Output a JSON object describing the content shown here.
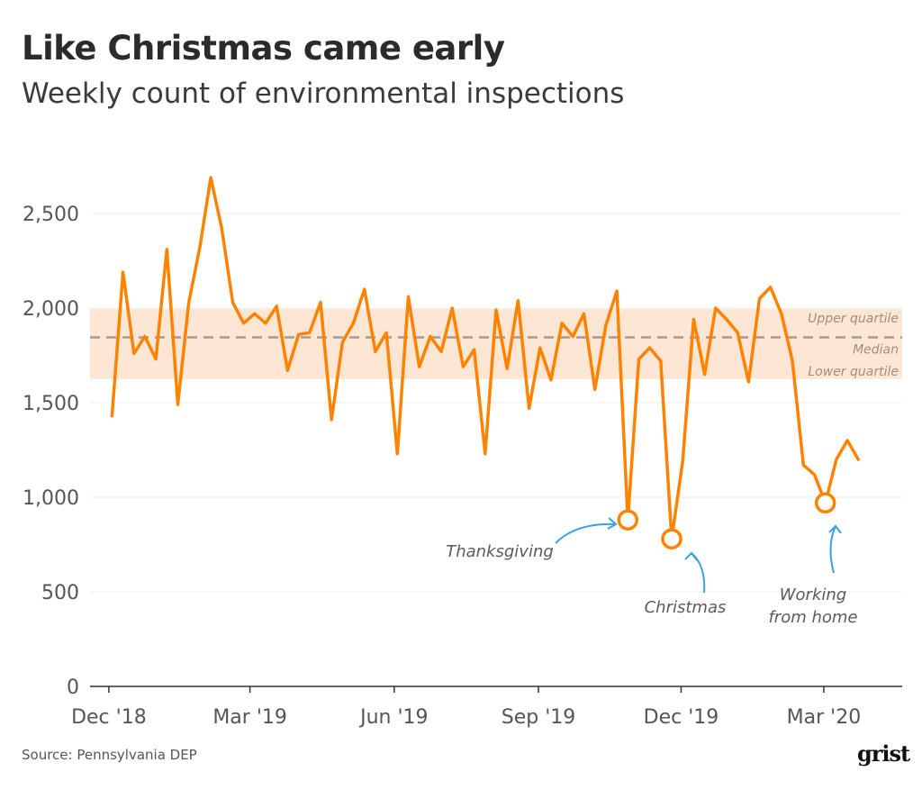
{
  "title": "Like Christmas came early",
  "subtitle": "Weekly count of environmental inspections",
  "source": "Source: Pennsylvania DEP",
  "logo": "grist",
  "colors": {
    "line": "#ff8300",
    "band": "#fde6d4",
    "median": "#a59a93",
    "annotation_arrow": "#3aa0e0"
  },
  "chart_data": {
    "type": "line",
    "title": "Like Christmas came early",
    "subtitle": "Weekly count of environmental inspections",
    "xlabel": "",
    "ylabel": "",
    "ylim": [
      0,
      2700
    ],
    "xlim": [
      "2018-11-19",
      "2020-04-20"
    ],
    "yticks": [
      0,
      500,
      1000,
      1500,
      2000,
      2500
    ],
    "ytick_labels": [
      "0",
      "500",
      "1,000",
      "1,500",
      "2,000",
      "2,500"
    ],
    "xticks": [
      "2018-12-01",
      "2019-03-01",
      "2019-06-01",
      "2019-09-01",
      "2019-12-01",
      "2020-03-01"
    ],
    "xtick_labels": [
      "Dec '18",
      "Mar '19",
      "Jun '19",
      "Sep '19",
      "Dec '19",
      "Mar '20"
    ],
    "grid": true,
    "x_start": "2018-12-03",
    "x_step_days": 7,
    "values": [
      1430,
      2190,
      1760,
      1850,
      1730,
      2310,
      1490,
      2030,
      2320,
      2690,
      2420,
      2030,
      1920,
      1970,
      1920,
      2010,
      1670,
      1860,
      1870,
      2030,
      1410,
      1820,
      1920,
      2100,
      1770,
      1870,
      1230,
      2060,
      1690,
      1850,
      1770,
      2000,
      1690,
      1780,
      1230,
      1990,
      1680,
      2040,
      1470,
      1790,
      1620,
      1920,
      1850,
      1970,
      1570,
      1910,
      2090,
      880,
      1730,
      1790,
      1720,
      780,
      1190,
      1940,
      1650,
      2000,
      1940,
      1870,
      1610,
      2050,
      2110,
      1970,
      1720,
      1170,
      1120,
      970,
      1200,
      1300,
      1200
    ],
    "reference": {
      "upper_quartile": 1995,
      "median": 1845,
      "lower_quartile": 1625,
      "upper_label": "Upper quartile",
      "median_label": "Median",
      "lower_label": "Lower quartile"
    },
    "annotations": [
      {
        "label": "Thanksgiving",
        "index": 47
      },
      {
        "label": "Christmas",
        "index": 51
      },
      {
        "label": "Working from home",
        "lines": [
          "Working",
          "from home"
        ],
        "index": 65
      }
    ]
  }
}
